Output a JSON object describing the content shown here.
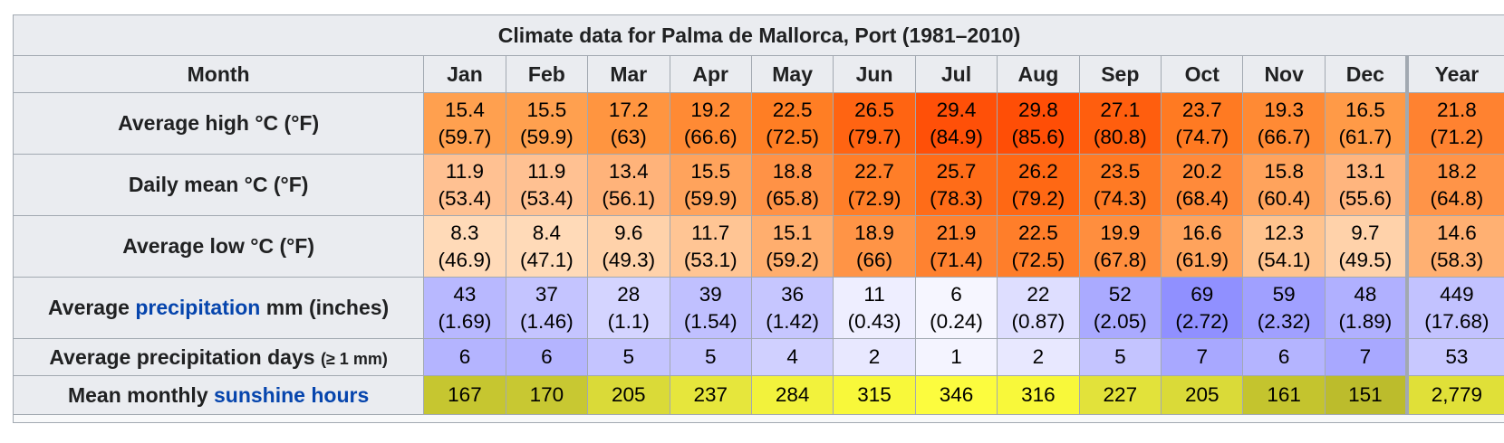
{
  "title": "Climate data for Palma de Mallorca, Port (1981–2010)",
  "columns": {
    "row_header": "Month",
    "months": [
      "Jan",
      "Feb",
      "Mar",
      "Apr",
      "May",
      "Jun",
      "Jul",
      "Aug",
      "Sep",
      "Oct",
      "Nov",
      "Dec"
    ],
    "year": "Year"
  },
  "rows": [
    {
      "key": "avg-high",
      "label_parts": [
        "Average high °C (°F)"
      ],
      "type": "temp",
      "cells": [
        {
          "v": "15.4",
          "sub": "(59.7)",
          "bg": "#ffa04f"
        },
        {
          "v": "15.5",
          "sub": "(59.9)",
          "bg": "#ffa04f"
        },
        {
          "v": "17.2",
          "sub": "(63)",
          "bg": "#ff9540"
        },
        {
          "v": "19.2",
          "sub": "(66.6)",
          "bg": "#ff8a34"
        },
        {
          "v": "22.5",
          "sub": "(72.5)",
          "bg": "#ff7e24"
        },
        {
          "v": "26.5",
          "sub": "(79.7)",
          "bg": "#ff6412"
        },
        {
          "v": "29.4",
          "sub": "(84.9)",
          "bg": "#ff5008"
        },
        {
          "v": "29.8",
          "sub": "(85.6)",
          "bg": "#ff4e06"
        },
        {
          "v": "27.1",
          "sub": "(80.8)",
          "bg": "#ff5e0e"
        },
        {
          "v": "23.7",
          "sub": "(74.7)",
          "bg": "#ff7a22"
        },
        {
          "v": "19.3",
          "sub": "(66.7)",
          "bg": "#ff8a34"
        },
        {
          "v": "16.5",
          "sub": "(61.7)",
          "bg": "#ff9a47"
        },
        {
          "v": "21.8",
          "sub": "(71.2)",
          "bg": "#ff8230"
        }
      ]
    },
    {
      "key": "daily-mean",
      "label_parts": [
        "Daily mean °C (°F)"
      ],
      "type": "temp",
      "cells": [
        {
          "v": "11.9",
          "sub": "(53.4)",
          "bg": "#ffc192"
        },
        {
          "v": "11.9",
          "sub": "(53.4)",
          "bg": "#ffc192"
        },
        {
          "v": "13.4",
          "sub": "(56.1)",
          "bg": "#ffb37a"
        },
        {
          "v": "15.5",
          "sub": "(59.9)",
          "bg": "#ffa35c"
        },
        {
          "v": "18.8",
          "sub": "(65.8)",
          "bg": "#ff9246"
        },
        {
          "v": "22.7",
          "sub": "(72.9)",
          "bg": "#ff7e28"
        },
        {
          "v": "25.7",
          "sub": "(78.3)",
          "bg": "#ff6c18"
        },
        {
          "v": "26.2",
          "sub": "(79.2)",
          "bg": "#ff6814"
        },
        {
          "v": "23.5",
          "sub": "(74.3)",
          "bg": "#ff7a24"
        },
        {
          "v": "20.2",
          "sub": "(68.4)",
          "bg": "#ff8a3a"
        },
        {
          "v": "15.8",
          "sub": "(60.4)",
          "bg": "#ffa35c"
        },
        {
          "v": "13.1",
          "sub": "(55.6)",
          "bg": "#ffb57e"
        },
        {
          "v": "18.2",
          "sub": "(64.8)",
          "bg": "#ff9448"
        }
      ]
    },
    {
      "key": "avg-low",
      "label_parts": [
        "Average low °C (°F)"
      ],
      "type": "temp",
      "cells": [
        {
          "v": "8.3",
          "sub": "(46.9)",
          "bg": "#ffdab8"
        },
        {
          "v": "8.4",
          "sub": "(47.1)",
          "bg": "#ffdab8"
        },
        {
          "v": "9.6",
          "sub": "(49.3)",
          "bg": "#ffd2aa"
        },
        {
          "v": "11.7",
          "sub": "(53.1)",
          "bg": "#ffc594"
        },
        {
          "v": "15.1",
          "sub": "(59.2)",
          "bg": "#ffae6e"
        },
        {
          "v": "18.9",
          "sub": "(66)",
          "bg": "#ff9446"
        },
        {
          "v": "21.9",
          "sub": "(71.4)",
          "bg": "#ff8230"
        },
        {
          "v": "22.5",
          "sub": "(72.5)",
          "bg": "#ff7e2a"
        },
        {
          "v": "19.9",
          "sub": "(67.8)",
          "bg": "#ff8e3e"
        },
        {
          "v": "16.6",
          "sub": "(61.9)",
          "bg": "#ffa35c"
        },
        {
          "v": "12.3",
          "sub": "(54.1)",
          "bg": "#ffc38e"
        },
        {
          "v": "9.7",
          "sub": "(49.5)",
          "bg": "#ffd2aa"
        },
        {
          "v": "14.6",
          "sub": "(58.3)",
          "bg": "#ffb072"
        }
      ]
    },
    {
      "key": "avg-precip",
      "label_parts": [
        "Average ",
        "precipitation",
        " mm (inches)"
      ],
      "type": "precip",
      "cells": [
        {
          "v": "43",
          "sub": "(1.69)",
          "bg": "#b8b8ff"
        },
        {
          "v": "37",
          "sub": "(1.46)",
          "bg": "#c4c4ff"
        },
        {
          "v": "28",
          "sub": "(1.1)",
          "bg": "#d4d4ff"
        },
        {
          "v": "39",
          "sub": "(1.54)",
          "bg": "#c0c0ff"
        },
        {
          "v": "36",
          "sub": "(1.42)",
          "bg": "#c6c6ff"
        },
        {
          "v": "11",
          "sub": "(0.43)",
          "bg": "#eeeeff"
        },
        {
          "v": "6",
          "sub": "(0.24)",
          "bg": "#f6f6ff"
        },
        {
          "v": "22",
          "sub": "(0.87)",
          "bg": "#dedeff"
        },
        {
          "v": "52",
          "sub": "(2.05)",
          "bg": "#aaaaff"
        },
        {
          "v": "69",
          "sub": "(2.72)",
          "bg": "#9090ff"
        },
        {
          "v": "59",
          "sub": "(2.32)",
          "bg": "#a0a0ff"
        },
        {
          "v": "48",
          "sub": "(1.89)",
          "bg": "#b0b0ff"
        },
        {
          "v": "449",
          "sub": "(17.68)",
          "bg": "#c2c2ff"
        }
      ]
    },
    {
      "key": "precip-days",
      "label_parts": [
        "Average precipitation days ",
        "(≥ 1 mm)"
      ],
      "type": "pdays",
      "cells": [
        {
          "v": "6",
          "bg": "#b4b4ff"
        },
        {
          "v": "6",
          "bg": "#b4b4ff"
        },
        {
          "v": "5",
          "bg": "#c4c4ff"
        },
        {
          "v": "5",
          "bg": "#c4c4ff"
        },
        {
          "v": "4",
          "bg": "#d0d0ff"
        },
        {
          "v": "2",
          "bg": "#e8e8ff"
        },
        {
          "v": "1",
          "bg": "#f4f4ff"
        },
        {
          "v": "2",
          "bg": "#e8e8ff"
        },
        {
          "v": "5",
          "bg": "#c4c4ff"
        },
        {
          "v": "7",
          "bg": "#a8a8ff"
        },
        {
          "v": "6",
          "bg": "#b4b4ff"
        },
        {
          "v": "7",
          "bg": "#a8a8ff"
        },
        {
          "v": "53",
          "bg": "#c8c8ff"
        }
      ]
    },
    {
      "key": "sunshine",
      "label_parts": [
        "Mean monthly ",
        "sunshine hours"
      ],
      "type": "sun",
      "cells": [
        {
          "v": "167",
          "bg": "#c6c630"
        },
        {
          "v": "170",
          "bg": "#c8c832"
        },
        {
          "v": "205",
          "bg": "#dada38"
        },
        {
          "v": "237",
          "bg": "#e6e63c"
        },
        {
          "v": "284",
          "bg": "#f2f23c"
        },
        {
          "v": "315",
          "bg": "#f8f83a"
        },
        {
          "v": "346",
          "bg": "#fcfc3e"
        },
        {
          "v": "316",
          "bg": "#f8f83a"
        },
        {
          "v": "227",
          "bg": "#e2e23a"
        },
        {
          "v": "205",
          "bg": "#dada38"
        },
        {
          "v": "161",
          "bg": "#c4c42e"
        },
        {
          "v": "151",
          "bg": "#bcbc2c"
        },
        {
          "v": "2,779",
          "bg": "#e0e038"
        }
      ]
    }
  ]
}
